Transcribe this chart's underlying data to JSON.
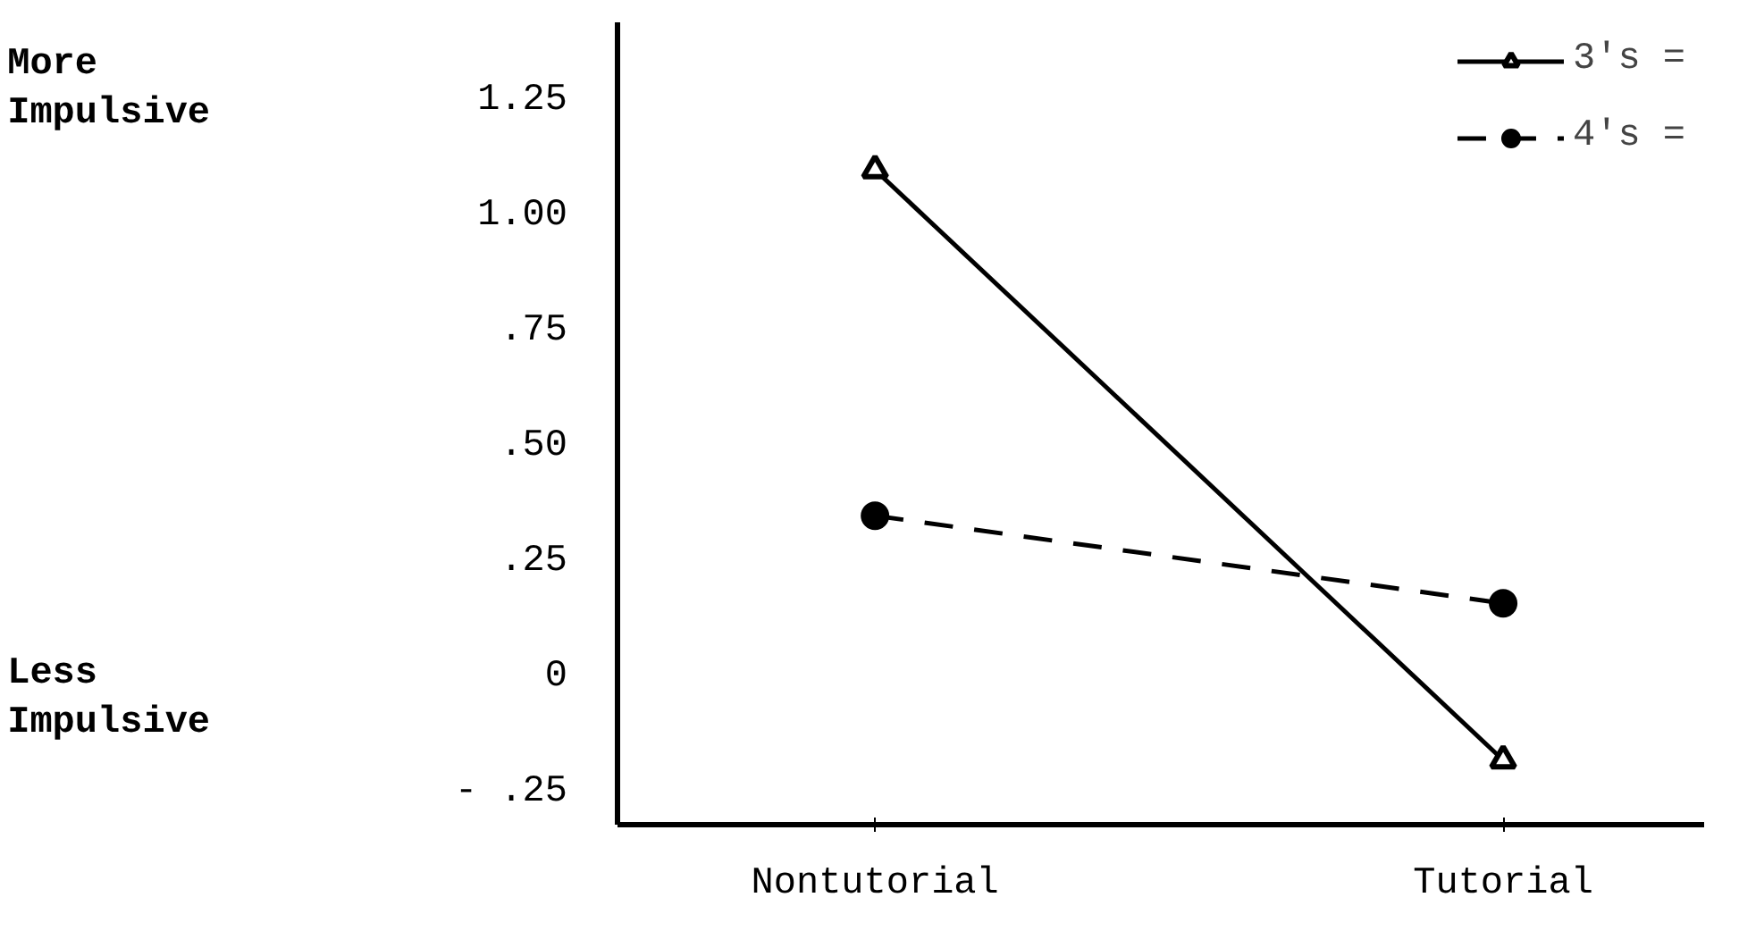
{
  "chart_data": {
    "type": "line",
    "categories": [
      "Nontutorial",
      "Tutorial"
    ],
    "series": [
      {
        "name": "3's =",
        "color": "#000000",
        "values": [
          1.1,
          -0.18
        ],
        "marker": "triangle",
        "line_style": "solid"
      },
      {
        "name": "4's =",
        "color": "#000000",
        "values": [
          0.35,
          0.16
        ],
        "marker": "circle",
        "line_style": "dashed"
      }
    ],
    "ylim": [
      -0.32,
      1.42
    ],
    "yticks": [
      {
        "value": 1.25,
        "label": "1.25"
      },
      {
        "value": 1.0,
        "label": "1.00"
      },
      {
        "value": 0.75,
        "label": ".75"
      },
      {
        "value": 0.5,
        "label": ".50"
      },
      {
        "value": 0.25,
        "label": ".25"
      },
      0,
      {
        "value": -0.25,
        "label": "- .25"
      }
    ],
    "annotations": [
      "More Impulsive",
      "Less Impulsive"
    ],
    "legend": "top right",
    "grid": false
  }
}
